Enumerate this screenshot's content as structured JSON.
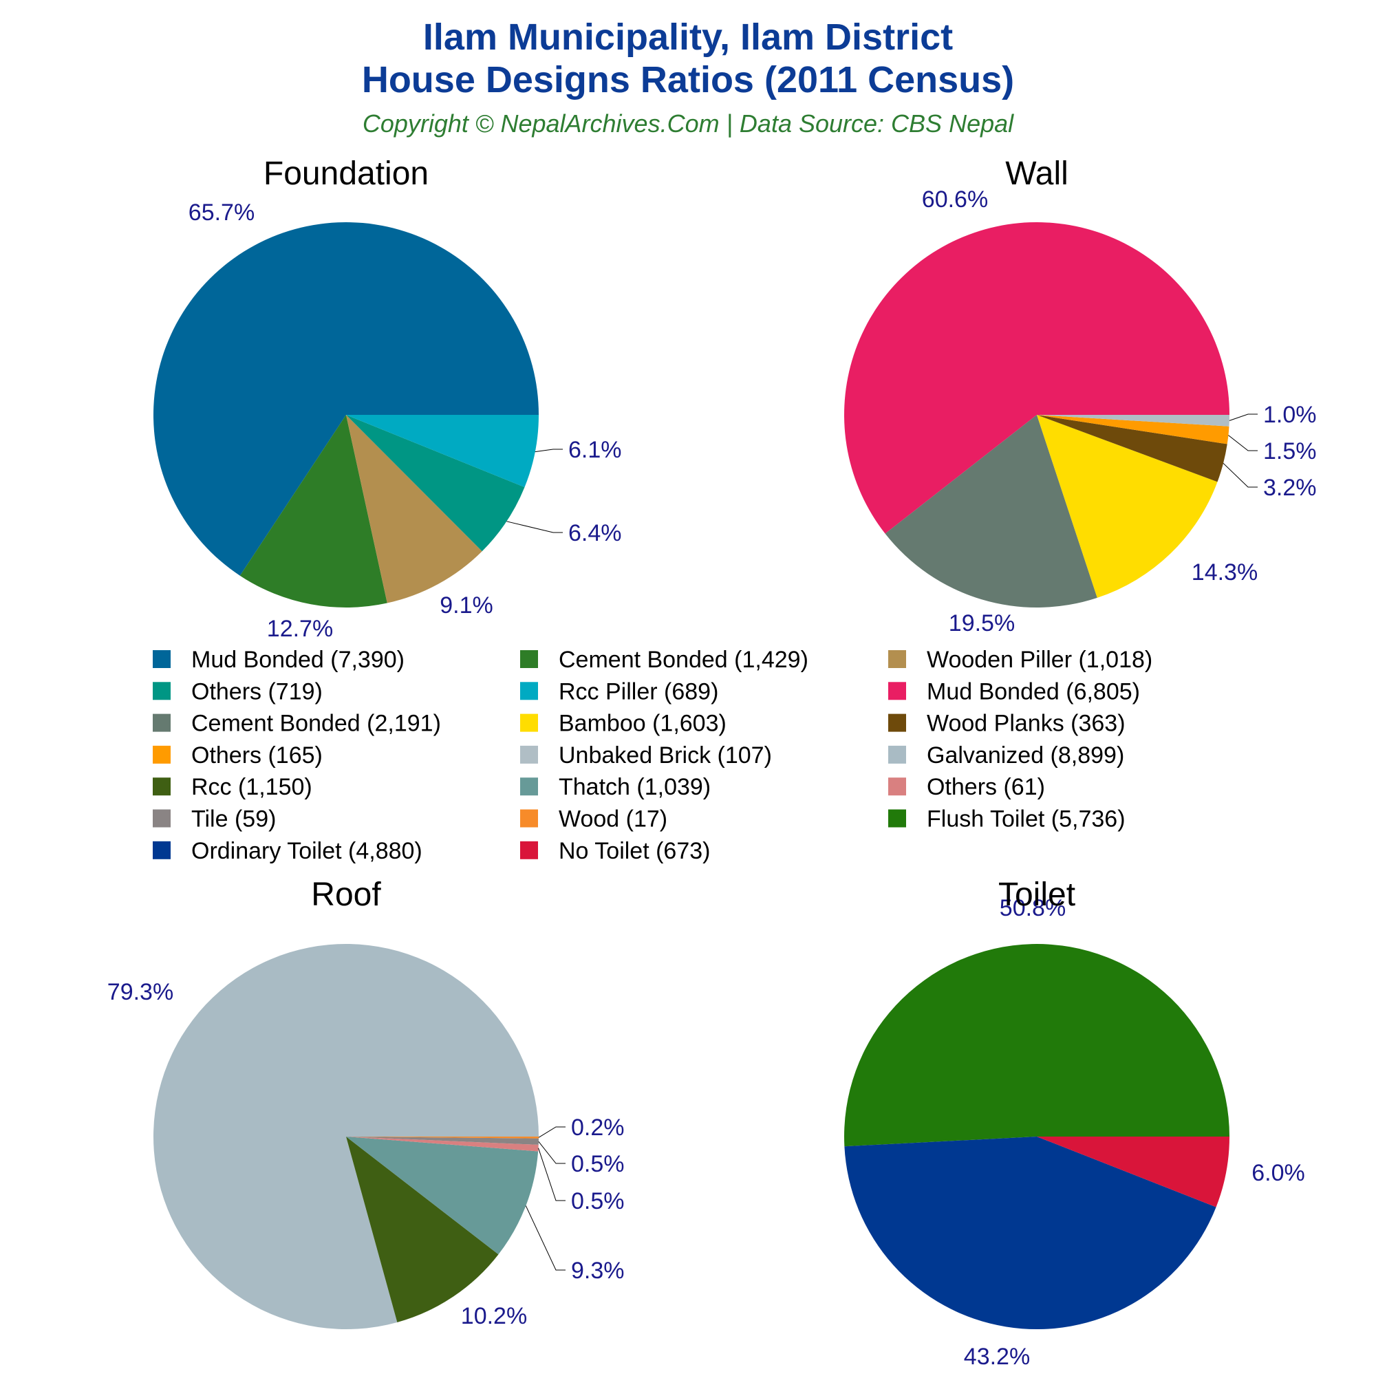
{
  "header": {
    "title_line1": "Ilam Municipality, Ilam District",
    "title_line2": "House Designs Ratios (2011 Census)",
    "subtitle": "Copyright © NepalArchives.Com | Data Source: CBS Nepal"
  },
  "colors": {
    "title": "#0c3c96",
    "subtitle": "#2e7d32",
    "percent_label": "#1a1a8c",
    "chart_title": "#000000"
  },
  "chart_data": [
    {
      "type": "pie",
      "title": "Foundation",
      "slices": [
        {
          "label": "Mud Bonded",
          "value": 7390,
          "percent": "65.7%",
          "color": "#006699"
        },
        {
          "label": "Cement Bonded",
          "value": 1429,
          "percent": "12.7%",
          "color": "#2e7d27"
        },
        {
          "label": "Wooden Piller",
          "value": 1018,
          "percent": "9.1%",
          "color": "#b38f4f"
        },
        {
          "label": "Others",
          "value": 719,
          "percent": "6.4%",
          "color": "#009684"
        },
        {
          "label": "Rcc Piller",
          "value": 689,
          "percent": "6.1%",
          "color": "#00aac2"
        }
      ]
    },
    {
      "type": "pie",
      "title": "Wall",
      "slices": [
        {
          "label": "Mud Bonded",
          "value": 6805,
          "percent": "60.6%",
          "color": "#e91e63"
        },
        {
          "label": "Cement Bonded",
          "value": 2191,
          "percent": "19.5%",
          "color": "#657a70"
        },
        {
          "label": "Bamboo",
          "value": 1603,
          "percent": "14.3%",
          "color": "#ffdd00"
        },
        {
          "label": "Wood Planks",
          "value": 363,
          "percent": "3.2%",
          "color": "#6e4a0b"
        },
        {
          "label": "Others",
          "value": 165,
          "percent": "1.5%",
          "color": "#ff9b00"
        },
        {
          "label": "Unbaked Brick",
          "value": 107,
          "percent": "1.0%",
          "color": "#b0bec5"
        }
      ]
    },
    {
      "type": "pie",
      "title": "Roof",
      "slices": [
        {
          "label": "Galvanized",
          "value": 8899,
          "percent": "79.3%",
          "color": "#a9bbc4"
        },
        {
          "label": "Rcc",
          "value": 1150,
          "percent": "10.2%",
          "color": "#3f5f13"
        },
        {
          "label": "Thatch",
          "value": 1039,
          "percent": "9.3%",
          "color": "#679a98"
        },
        {
          "label": "Others",
          "value": 61,
          "percent": "0.5%",
          "color": "#d98080"
        },
        {
          "label": "Tile",
          "value": 59,
          "percent": "0.5%",
          "color": "#8a8484"
        },
        {
          "label": "Wood",
          "value": 17,
          "percent": "0.2%",
          "color": "#f78b29"
        }
      ]
    },
    {
      "type": "pie",
      "title": "Toilet",
      "slices": [
        {
          "label": "Flush Toilet",
          "value": 5736,
          "percent": "50.8%",
          "color": "#217a0a"
        },
        {
          "label": "Ordinary Toilet",
          "value": 4880,
          "percent": "43.2%",
          "color": "#003891"
        },
        {
          "label": "No Toilet",
          "value": 673,
          "percent": "6.0%",
          "color": "#d9153a"
        }
      ]
    }
  ],
  "legend": [
    {
      "text": "Mud Bonded (7,390)",
      "color": "#006699"
    },
    {
      "text": "Cement Bonded (1,429)",
      "color": "#2e7d27"
    },
    {
      "text": "Wooden Piller (1,018)",
      "color": "#b38f4f"
    },
    {
      "text": "Others (719)",
      "color": "#009684"
    },
    {
      "text": "Rcc Piller (689)",
      "color": "#00aac2"
    },
    {
      "text": "Mud Bonded (6,805)",
      "color": "#e91e63"
    },
    {
      "text": "Cement Bonded (2,191)",
      "color": "#657a70"
    },
    {
      "text": "Bamboo (1,603)",
      "color": "#ffdd00"
    },
    {
      "text": "Wood Planks (363)",
      "color": "#6e4a0b"
    },
    {
      "text": "Others (165)",
      "color": "#ff9b00"
    },
    {
      "text": "Unbaked Brick (107)",
      "color": "#b0bec5"
    },
    {
      "text": "Galvanized (8,899)",
      "color": "#a9bbc4"
    },
    {
      "text": "Rcc (1,150)",
      "color": "#3f5f13"
    },
    {
      "text": "Thatch (1,039)",
      "color": "#679a98"
    },
    {
      "text": "Others (61)",
      "color": "#d98080"
    },
    {
      "text": "Tile (59)",
      "color": "#8a8484"
    },
    {
      "text": "Wood (17)",
      "color": "#f78b29"
    },
    {
      "text": "Flush Toilet (5,736)",
      "color": "#217a0a"
    },
    {
      "text": "Ordinary Toilet (4,880)",
      "color": "#003891"
    },
    {
      "text": "No Toilet (673)",
      "color": "#d9153a"
    }
  ]
}
